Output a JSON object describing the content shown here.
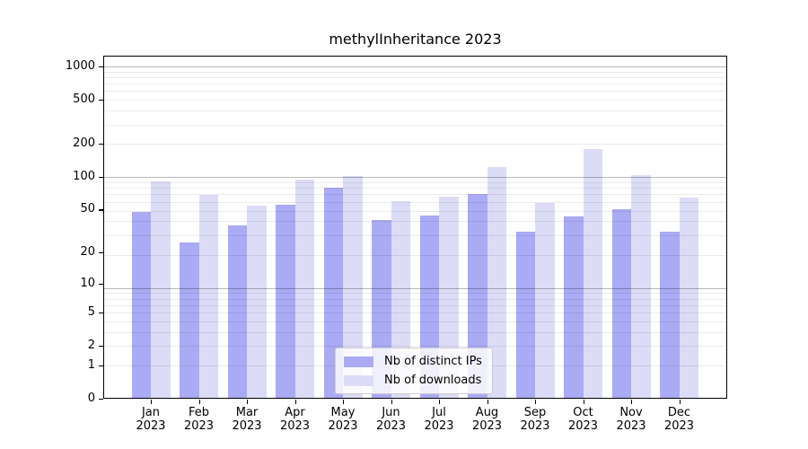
{
  "chart_data": {
    "type": "bar",
    "title": "methylInheritance 2023",
    "categories": [
      "Jan 2023",
      "Feb 2023",
      "Mar 2023",
      "Apr 2023",
      "May 2023",
      "Jun 2023",
      "Jul 2023",
      "Aug 2023",
      "Sep 2023",
      "Oct 2023",
      "Nov 2023",
      "Dec 2023"
    ],
    "series": [
      {
        "name": "Nb of distinct IPs",
        "color": "#aaaaf5",
        "values": [
          48,
          25,
          36,
          55,
          80,
          40,
          44,
          70,
          31,
          43,
          50,
          31
        ]
      },
      {
        "name": "Nb of downloads",
        "color": "#dcdcf8",
        "values": [
          90,
          68,
          54,
          94,
          101,
          60,
          66,
          122,
          58,
          180,
          103,
          64
        ]
      }
    ],
    "y_ticks": [
      0,
      1,
      2,
      5,
      10,
      20,
      50,
      100,
      200,
      500,
      1000
    ],
    "y_scale": "log10(1+x)",
    "ylim": [
      0,
      1253
    ],
    "grid": "horizontal",
    "legend_position": "lower center",
    "accent_major_grid": "#b6b6b6",
    "accent_minor_grid": "#e9e9e9"
  }
}
